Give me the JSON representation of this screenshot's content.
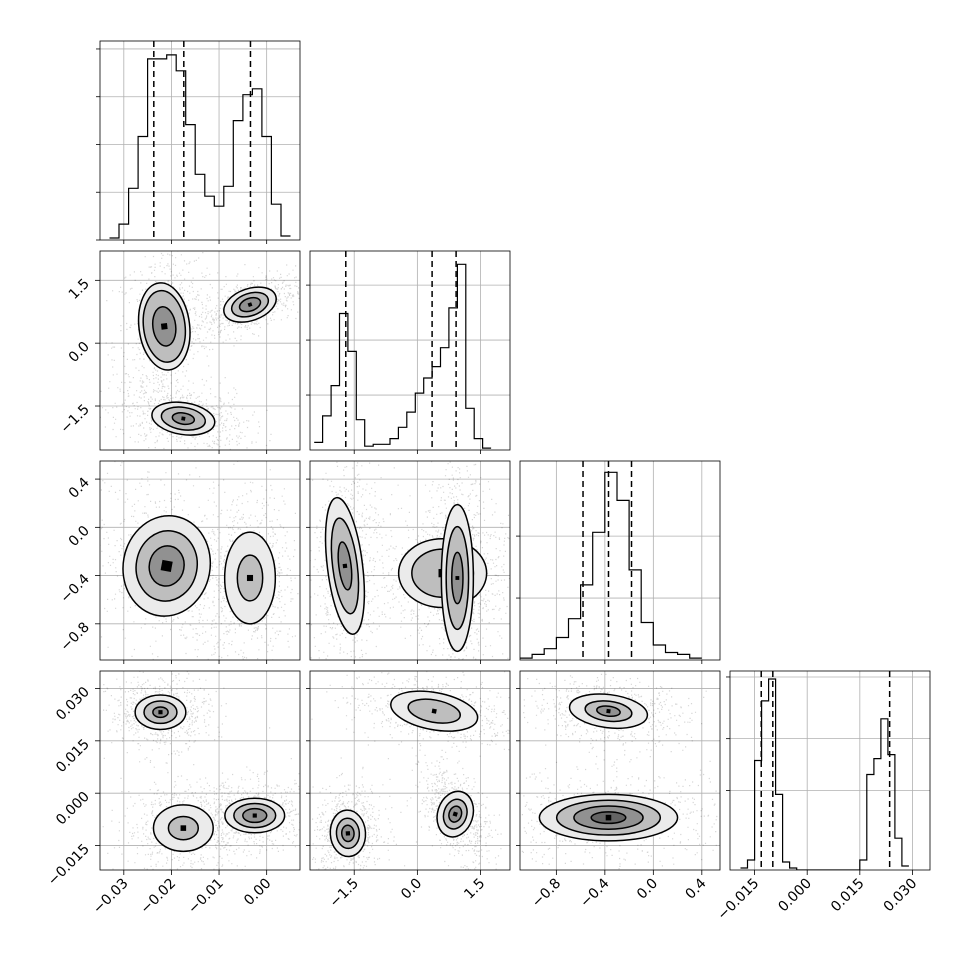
{
  "chart_data": {
    "type": "corner",
    "grid": true,
    "n_params": 4,
    "params": [
      {
        "range": [
          -0.035,
          0.007
        ],
        "ticks": [
          -0.03,
          -0.02,
          -0.01,
          0.0
        ],
        "tick_labels": [
          "−0.03",
          "−0.02",
          "−0.01",
          "0.00"
        ]
      },
      {
        "range": [
          -2.55,
          2.2
        ],
        "ticks": [
          -1.5,
          0.0,
          1.5
        ],
        "tick_labels": [
          "−1.5",
          "0.0",
          "1.5"
        ]
      },
      {
        "range": [
          -1.1,
          0.55
        ],
        "ticks": [
          -0.8,
          -0.4,
          0.0,
          0.4
        ],
        "tick_labels": [
          "−0.8",
          "−0.4",
          "0.0",
          "0.4"
        ]
      },
      {
        "range": [
          -0.022,
          0.035
        ],
        "ticks": [
          -0.015,
          0.0,
          0.015,
          0.03
        ],
        "tick_labels": [
          "−0.015",
          "0.000",
          "0.015",
          "0.030"
        ]
      }
    ],
    "histograms": [
      {
        "param": 0,
        "bin_edges": [
          -0.033,
          -0.031,
          -0.029,
          -0.027,
          -0.025,
          -0.023,
          -0.021,
          -0.019,
          -0.017,
          -0.015,
          -0.013,
          -0.011,
          -0.009,
          -0.007,
          -0.005,
          -0.003,
          -0.001,
          0.001,
          0.003,
          0.005
        ],
        "counts": [
          0.01,
          0.08,
          0.26,
          0.52,
          0.91,
          0.91,
          0.93,
          0.85,
          0.58,
          0.33,
          0.22,
          0.17,
          0.27,
          0.6,
          0.73,
          0.76,
          0.52,
          0.18,
          0.02
        ],
        "ymax": 1.0,
        "ygrid": [
          0.24,
          0.48,
          0.72,
          0.96
        ],
        "quantiles": [
          -0.0237,
          -0.0174,
          -0.0034
        ]
      },
      {
        "param": 1,
        "bin_edges": [
          -2.45,
          -2.25,
          -2.05,
          -1.85,
          -1.65,
          -1.45,
          -1.25,
          -1.05,
          -0.85,
          -0.65,
          -0.45,
          -0.25,
          -0.05,
          0.15,
          0.35,
          0.55,
          0.75,
          0.95,
          1.15,
          1.35,
          1.55,
          1.75
        ],
        "counts": [
          0.04,
          0.18,
          0.34,
          0.72,
          0.52,
          0.16,
          0.02,
          0.03,
          0.03,
          0.06,
          0.12,
          0.2,
          0.3,
          0.38,
          0.44,
          0.54,
          0.75,
          0.98,
          0.22,
          0.06,
          0.01
        ],
        "ymax": 1.05,
        "ygrid": [
          0.29,
          0.58,
          0.87
        ],
        "quantiles": [
          -1.7,
          0.35,
          0.92
        ]
      },
      {
        "param": 2,
        "bin_edges": [
          -1.1,
          -1.0,
          -0.9,
          -0.8,
          -0.7,
          -0.6,
          -0.5,
          -0.4,
          -0.3,
          -0.2,
          -0.1,
          0.0,
          0.1,
          0.2,
          0.3,
          0.4
        ],
        "counts": [
          0.01,
          0.03,
          0.06,
          0.12,
          0.22,
          0.4,
          0.68,
          1.0,
          0.85,
          0.48,
          0.2,
          0.08,
          0.04,
          0.03,
          0.01
        ],
        "ymax": 1.06,
        "ygrid": [
          0.33,
          0.66
        ],
        "quantiles": [
          -0.58,
          -0.37,
          -0.18
        ]
      },
      {
        "param": 3,
        "bin_edges": [
          -0.019,
          -0.017,
          -0.015,
          -0.013,
          -0.011,
          -0.009,
          -0.007,
          -0.005,
          -0.003,
          -0.001,
          0.001,
          0.003,
          0.005,
          0.007,
          0.009,
          0.011,
          0.013,
          0.015,
          0.017,
          0.019,
          0.021,
          0.023,
          0.025,
          0.027,
          0.029
        ],
        "counts": [
          0.01,
          0.05,
          0.55,
          0.85,
          0.96,
          0.38,
          0.04,
          0.01,
          0,
          0,
          0,
          0,
          0,
          0,
          0,
          0,
          0,
          0.05,
          0.48,
          0.56,
          0.76,
          0.58,
          0.16,
          0.02
        ],
        "ymax": 1.0,
        "ygrid": [
          0.4,
          0.66,
          0.97
        ],
        "quantiles": [
          -0.0131,
          -0.0098,
          0.0235
        ]
      }
    ],
    "density_panels": [
      {
        "x_param": 0,
        "y_param": 1,
        "blobs": [
          {
            "cx": -0.0215,
            "cy": 0.4,
            "sx": 0.0028,
            "sy": 0.55,
            "rho": 0.2,
            "levels": [
              1.0,
              0.82,
              0.45
            ]
          },
          {
            "cx": -0.0175,
            "cy": -1.8,
            "sx": 0.0035,
            "sy": 0.2,
            "rho": -0.25,
            "levels": [
              1.0,
              0.7,
              0.35
            ]
          },
          {
            "cx": -0.0035,
            "cy": 0.92,
            "sx": 0.003,
            "sy": 0.2,
            "rho": 0.55,
            "levels": [
              1.0,
              0.7,
              0.4
            ]
          }
        ]
      },
      {
        "x_param": 0,
        "y_param": 2,
        "blobs": [
          {
            "cx": -0.021,
            "cy": -0.32,
            "sx": 0.0048,
            "sy": 0.22,
            "rho": -0.3,
            "levels": [
              1.0,
              0.7,
              0.4
            ]
          },
          {
            "cx": -0.0035,
            "cy": -0.42,
            "sx": 0.0028,
            "sy": 0.2,
            "rho": 0.0,
            "levels": [
              1.0,
              0.5
            ]
          }
        ]
      },
      {
        "x_param": 0,
        "y_param": 3,
        "blobs": [
          {
            "cx": -0.0223,
            "cy": 0.0232,
            "sx": 0.0028,
            "sy": 0.0026,
            "rho": 0.0,
            "levels": [
              1.0,
              0.65,
              0.3
            ]
          },
          {
            "cx": -0.0175,
            "cy": -0.01,
            "sx": 0.0033,
            "sy": 0.0035,
            "rho": 0.0,
            "levels": [
              1.0,
              0.5
            ]
          },
          {
            "cx": -0.0025,
            "cy": -0.0064,
            "sx": 0.0033,
            "sy": 0.0026,
            "rho": 0.0,
            "levels": [
              1.0,
              0.7,
              0.4
            ]
          }
        ]
      },
      {
        "x_param": 1,
        "y_param": 2,
        "blobs": [
          {
            "cx": -1.72,
            "cy": -0.32,
            "sx": 0.22,
            "sy": 0.3,
            "rho": 0.2,
            "levels": [
              1.0,
              0.7,
              0.35
            ]
          },
          {
            "cx": 0.6,
            "cy": -0.38,
            "sx": 0.55,
            "sy": 0.15,
            "rho": 0.0,
            "levels": [
              1.0,
              0.7
            ]
          },
          {
            "cx": 0.95,
            "cy": -0.42,
            "sx": 0.2,
            "sy": 0.32,
            "rho": 0.0,
            "levels": [
              1.0,
              0.7,
              0.35
            ]
          }
        ]
      },
      {
        "x_param": 1,
        "y_param": 3,
        "blobs": [
          {
            "cx": 0.4,
            "cy": 0.0235,
            "sx": 0.55,
            "sy": 0.0028,
            "rho": -0.3,
            "levels": [
              1.0,
              0.6
            ]
          },
          {
            "cx": -1.65,
            "cy": -0.0115,
            "sx": 0.22,
            "sy": 0.0035,
            "rho": 0.1,
            "levels": [
              1.0,
              0.65,
              0.35
            ]
          },
          {
            "cx": 0.9,
            "cy": -0.006,
            "sx": 0.22,
            "sy": 0.0035,
            "rho": -0.5,
            "levels": [
              1.0,
              0.65,
              0.35
            ]
          }
        ]
      },
      {
        "x_param": 2,
        "y_param": 3,
        "blobs": [
          {
            "cx": -0.37,
            "cy": 0.0235,
            "sx": 0.17,
            "sy": 0.0025,
            "rho": -0.2,
            "levels": [
              1.0,
              0.6,
              0.3
            ]
          },
          {
            "cx": -0.37,
            "cy": -0.007,
            "sx": 0.3,
            "sy": 0.0035,
            "rho": 0.0,
            "levels": [
              1.0,
              0.75,
              0.5,
              0.25
            ]
          }
        ]
      }
    ]
  }
}
